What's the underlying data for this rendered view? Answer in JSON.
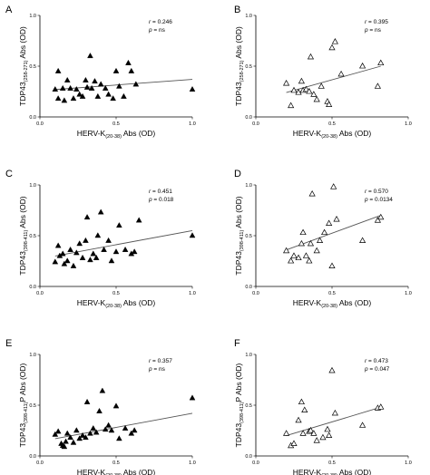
{
  "chart_data": [
    {
      "panel": "A",
      "type": "scatter",
      "marker": "filled-triangle",
      "xlabel": {
        "main": "HERV-K",
        "sub": "(20-38)",
        "rest": " Abs (OD)"
      },
      "ylabel": {
        "main": "TDP43",
        "sub": "(258-271)",
        "rest": " Abs (OD)"
      },
      "xlim": [
        0,
        1
      ],
      "ylim": [
        0,
        1
      ],
      "xticks": [
        "0.0",
        "0.5",
        "1.0"
      ],
      "yticks": [
        "0.0",
        "0.5",
        "1.0"
      ],
      "r_label": "r",
      "r_value": "= 0.246",
      "p_label": "p",
      "p_value": "= ns",
      "trendline": [
        [
          0.1,
          0.27
        ],
        [
          1.0,
          0.37
        ]
      ],
      "points": [
        [
          0.1,
          0.27
        ],
        [
          0.12,
          0.45
        ],
        [
          0.12,
          0.18
        ],
        [
          0.15,
          0.28
        ],
        [
          0.16,
          0.16
        ],
        [
          0.18,
          0.36
        ],
        [
          0.2,
          0.28
        ],
        [
          0.22,
          0.18
        ],
        [
          0.24,
          0.27
        ],
        [
          0.26,
          0.22
        ],
        [
          0.28,
          0.2
        ],
        [
          0.3,
          0.36
        ],
        [
          0.31,
          0.29
        ],
        [
          0.33,
          0.6
        ],
        [
          0.34,
          0.28
        ],
        [
          0.36,
          0.35
        ],
        [
          0.38,
          0.2
        ],
        [
          0.4,
          0.32
        ],
        [
          0.43,
          0.28
        ],
        [
          0.45,
          0.22
        ],
        [
          0.48,
          0.18
        ],
        [
          0.5,
          0.45
        ],
        [
          0.52,
          0.3
        ],
        [
          0.55,
          0.2
        ],
        [
          0.58,
          0.53
        ],
        [
          0.6,
          0.45
        ],
        [
          0.63,
          0.32
        ],
        [
          1.0,
          0.27
        ]
      ]
    },
    {
      "panel": "B",
      "type": "scatter",
      "marker": "open-triangle",
      "xlabel": {
        "main": "HERV-K",
        "sub": "(20-38)",
        "rest": " Abs (OD)"
      },
      "ylabel": {
        "main": "TDP43",
        "sub": "(258-271)",
        "rest": " Abs (OD)"
      },
      "xlim": [
        0,
        1
      ],
      "ylim": [
        0,
        1
      ],
      "xticks": [
        "0.0",
        "0.5",
        "1.0"
      ],
      "yticks": [
        "0.0",
        "0.5",
        "1.0"
      ],
      "r_label": "r",
      "r_value": "= 0.395",
      "p_label": "p",
      "p_value": "= ns",
      "trendline": [
        [
          0.2,
          0.24
        ],
        [
          0.82,
          0.5
        ]
      ],
      "points": [
        [
          0.2,
          0.33
        ],
        [
          0.23,
          0.11
        ],
        [
          0.25,
          0.26
        ],
        [
          0.28,
          0.24
        ],
        [
          0.3,
          0.35
        ],
        [
          0.31,
          0.26
        ],
        [
          0.33,
          0.27
        ],
        [
          0.35,
          0.25
        ],
        [
          0.36,
          0.59
        ],
        [
          0.38,
          0.22
        ],
        [
          0.4,
          0.17
        ],
        [
          0.43,
          0.3
        ],
        [
          0.47,
          0.15
        ],
        [
          0.48,
          0.12
        ],
        [
          0.5,
          0.68
        ],
        [
          0.52,
          0.74
        ],
        [
          0.56,
          0.42
        ],
        [
          0.7,
          0.5
        ],
        [
          0.8,
          0.3
        ],
        [
          0.82,
          0.53
        ]
      ]
    },
    {
      "panel": "C",
      "type": "scatter",
      "marker": "filled-triangle",
      "xlabel": {
        "main": "HERV-K",
        "sub": "(20-38)",
        "rest": " Abs (OD)"
      },
      "ylabel": {
        "main": "TDP43",
        "sub": "(398-411)",
        "rest": " Abs (OD)"
      },
      "xlim": [
        0,
        1
      ],
      "ylim": [
        0,
        1
      ],
      "xticks": [
        "0.0",
        "0.5",
        "1.0"
      ],
      "yticks": [
        "0.0",
        "0.5",
        "1.0"
      ],
      "r_label": "r",
      "r_value": "= 0.451",
      "p_label": "p",
      "p_value": "= 0.018",
      "trendline": [
        [
          0.1,
          0.3
        ],
        [
          1.0,
          0.55
        ]
      ],
      "points": [
        [
          0.1,
          0.24
        ],
        [
          0.12,
          0.4
        ],
        [
          0.13,
          0.3
        ],
        [
          0.15,
          0.32
        ],
        [
          0.16,
          0.22
        ],
        [
          0.18,
          0.25
        ],
        [
          0.2,
          0.36
        ],
        [
          0.22,
          0.2
        ],
        [
          0.24,
          0.33
        ],
        [
          0.26,
          0.42
        ],
        [
          0.28,
          0.28
        ],
        [
          0.3,
          0.45
        ],
        [
          0.31,
          0.68
        ],
        [
          0.33,
          0.26
        ],
        [
          0.35,
          0.32
        ],
        [
          0.37,
          0.28
        ],
        [
          0.38,
          0.5
        ],
        [
          0.4,
          0.73
        ],
        [
          0.42,
          0.36
        ],
        [
          0.45,
          0.45
        ],
        [
          0.47,
          0.25
        ],
        [
          0.5,
          0.34
        ],
        [
          0.52,
          0.6
        ],
        [
          0.56,
          0.36
        ],
        [
          0.6,
          0.32
        ],
        [
          0.62,
          0.34
        ],
        [
          0.65,
          0.65
        ],
        [
          1.0,
          0.5
        ]
      ]
    },
    {
      "panel": "D",
      "type": "scatter",
      "marker": "open-triangle",
      "xlabel": {
        "main": "HERV-K",
        "sub": "(20-38)",
        "rest": " Abs (OD)"
      },
      "ylabel": {
        "main": "TDP43",
        "sub": "(398-411)",
        "rest": " Abs (OD)"
      },
      "xlim": [
        0,
        1
      ],
      "ylim": [
        0,
        1
      ],
      "xticks": [
        "0.0",
        "0.5",
        "1.0"
      ],
      "yticks": [
        "0.0",
        "0.5",
        "1.0"
      ],
      "r_label": "r",
      "r_value": "= 0.570",
      "p_label": "p",
      "p_value": "= 0.0134",
      "trendline": [
        [
          0.2,
          0.36
        ],
        [
          0.82,
          0.7
        ]
      ],
      "points": [
        [
          0.2,
          0.35
        ],
        [
          0.23,
          0.25
        ],
        [
          0.25,
          0.3
        ],
        [
          0.28,
          0.28
        ],
        [
          0.3,
          0.42
        ],
        [
          0.31,
          0.53
        ],
        [
          0.33,
          0.3
        ],
        [
          0.35,
          0.25
        ],
        [
          0.36,
          0.42
        ],
        [
          0.37,
          0.91
        ],
        [
          0.4,
          0.35
        ],
        [
          0.42,
          0.45
        ],
        [
          0.45,
          0.53
        ],
        [
          0.48,
          0.62
        ],
        [
          0.5,
          0.2
        ],
        [
          0.51,
          0.98
        ],
        [
          0.53,
          0.66
        ],
        [
          0.7,
          0.45
        ],
        [
          0.8,
          0.65
        ],
        [
          0.82,
          0.68
        ]
      ]
    },
    {
      "panel": "E",
      "type": "scatter",
      "marker": "filled-triangle",
      "xlabel": {
        "main": "HERV-K",
        "sub": "(20-38)",
        "rest": " Abs (OD)"
      },
      "ylabel": {
        "main": "TDP43",
        "sub": "(398-411)",
        "rest": "P Abs (OD)"
      },
      "xlim": [
        0,
        1
      ],
      "ylim": [
        0,
        1
      ],
      "xticks": [
        "0.0",
        "0.5",
        "1.0"
      ],
      "yticks": [
        "0.0",
        "0.5",
        "1.0"
      ],
      "r_label": "r",
      "r_value": "= 0.357",
      "p_label": "p",
      "p_value": "= ns",
      "trendline": [
        [
          0.1,
          0.17
        ],
        [
          1.0,
          0.42
        ]
      ],
      "points": [
        [
          0.1,
          0.21
        ],
        [
          0.12,
          0.24
        ],
        [
          0.14,
          0.12
        ],
        [
          0.15,
          0.1
        ],
        [
          0.16,
          0.09
        ],
        [
          0.17,
          0.14
        ],
        [
          0.18,
          0.22
        ],
        [
          0.2,
          0.18
        ],
        [
          0.22,
          0.13
        ],
        [
          0.24,
          0.25
        ],
        [
          0.26,
          0.17
        ],
        [
          0.28,
          0.2
        ],
        [
          0.3,
          0.18
        ],
        [
          0.31,
          0.53
        ],
        [
          0.33,
          0.22
        ],
        [
          0.35,
          0.27
        ],
        [
          0.37,
          0.23
        ],
        [
          0.39,
          0.44
        ],
        [
          0.41,
          0.64
        ],
        [
          0.43,
          0.26
        ],
        [
          0.45,
          0.3
        ],
        [
          0.47,
          0.25
        ],
        [
          0.5,
          0.49
        ],
        [
          0.52,
          0.17
        ],
        [
          0.56,
          0.27
        ],
        [
          0.6,
          0.22
        ],
        [
          0.62,
          0.25
        ],
        [
          1.0,
          0.57
        ]
      ]
    },
    {
      "panel": "F",
      "type": "scatter",
      "marker": "open-triangle",
      "xlabel": {
        "main": "HERV-K",
        "sub": "(20-38)",
        "rest": " Abs (OD)"
      },
      "ylabel": {
        "main": "TDP43",
        "sub": "(398-411)",
        "rest": "P Abs (OD)"
      },
      "xlim": [
        0,
        1
      ],
      "ylim": [
        0,
        1
      ],
      "xticks": [
        "0.0",
        "0.5",
        "1.0"
      ],
      "yticks": [
        "0.0",
        "0.5",
        "1.0"
      ],
      "r_label": "r",
      "r_value": "= 0.473",
      "p_label": "p",
      "p_value": "= 0.047",
      "trendline": [
        [
          0.2,
          0.2
        ],
        [
          0.82,
          0.48
        ]
      ],
      "points": [
        [
          0.2,
          0.22
        ],
        [
          0.23,
          0.1
        ],
        [
          0.25,
          0.12
        ],
        [
          0.28,
          0.35
        ],
        [
          0.3,
          0.53
        ],
        [
          0.31,
          0.22
        ],
        [
          0.32,
          0.45
        ],
        [
          0.35,
          0.24
        ],
        [
          0.36,
          0.25
        ],
        [
          0.38,
          0.22
        ],
        [
          0.4,
          0.15
        ],
        [
          0.44,
          0.18
        ],
        [
          0.47,
          0.26
        ],
        [
          0.48,
          0.2
        ],
        [
          0.5,
          0.84
        ],
        [
          0.52,
          0.42
        ],
        [
          0.7,
          0.3
        ],
        [
          0.8,
          0.47
        ],
        [
          0.82,
          0.48
        ]
      ]
    }
  ]
}
